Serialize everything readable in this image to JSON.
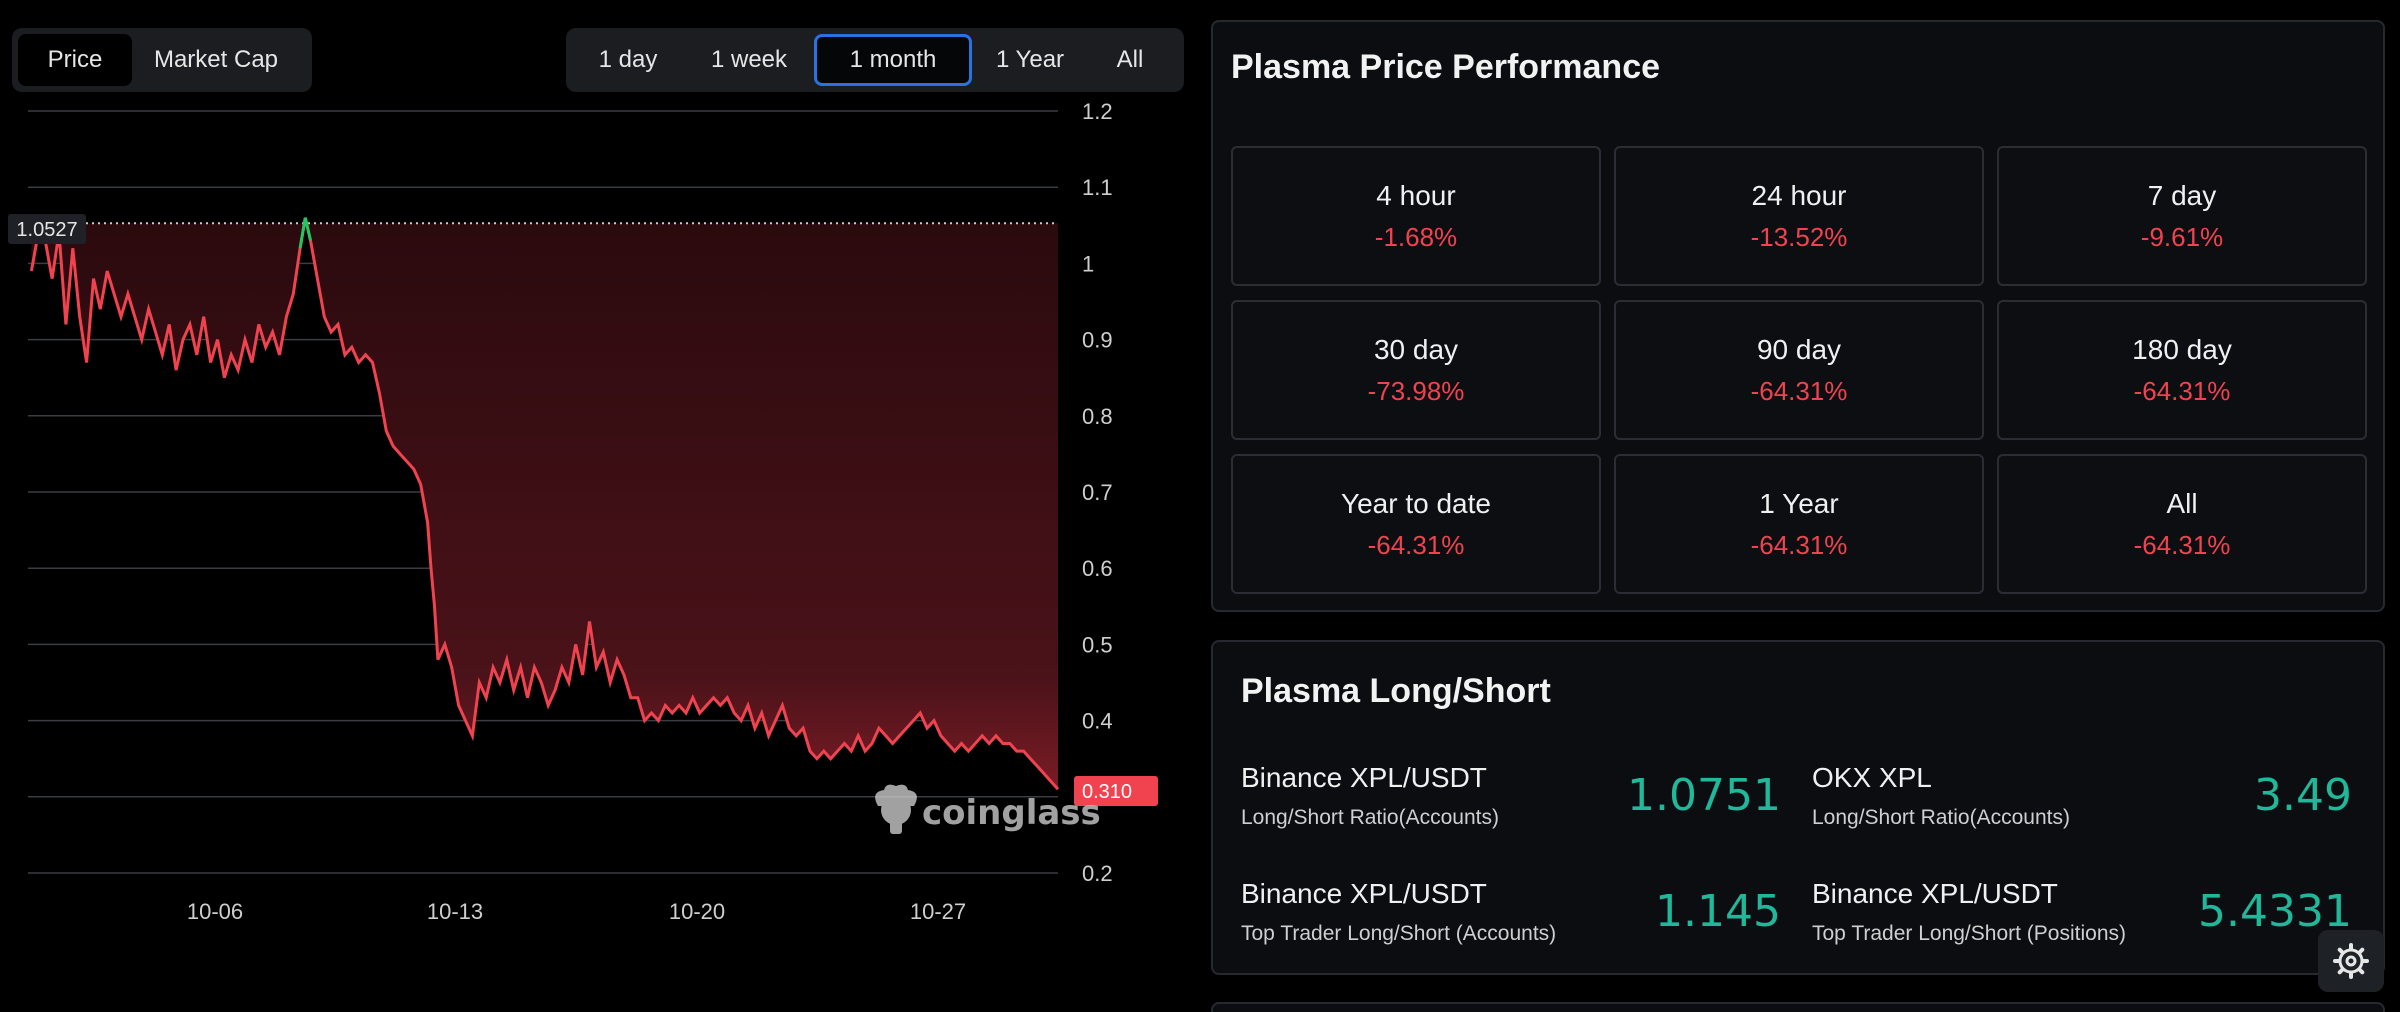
{
  "chart_tabs": [
    "Price",
    "Market Cap"
  ],
  "range_tabs": [
    "1 day",
    "1 week",
    "1 month",
    "1 Year",
    "All"
  ],
  "chart_data": {
    "type": "line",
    "title": "",
    "xlabel": "",
    "ylabel": "",
    "x_ticks": [
      "10-06",
      "10-13",
      "10-20",
      "10-27"
    ],
    "y_ticks": [
      "1.2",
      "1.1",
      "1",
      "0.9",
      "0.8",
      "0.7",
      "0.6",
      "0.5",
      "0.4",
      "0.3",
      "0.2"
    ],
    "ylim": [
      0.2,
      1.2
    ],
    "xlim": [
      0,
      29.9
    ],
    "high_label": "1.0527",
    "current_label": "0.310",
    "watermark": "coinglass",
    "colors": {
      "line": "#f0434f",
      "high_segment": "#22c55e",
      "fill_top": "#3a0d12",
      "label_bg": "#f0434f"
    },
    "series": [
      {
        "points": [
          [
            0.1,
            0.99
          ],
          [
            0.3,
            1.04
          ],
          [
            0.5,
            1.03
          ],
          [
            0.7,
            0.98
          ],
          [
            0.9,
            1.04
          ],
          [
            1.1,
            0.92
          ],
          [
            1.3,
            1.02
          ],
          [
            1.5,
            0.93
          ],
          [
            1.7,
            0.87
          ],
          [
            1.9,
            0.98
          ],
          [
            2.1,
            0.94
          ],
          [
            2.3,
            0.99
          ],
          [
            2.5,
            0.96
          ],
          [
            2.7,
            0.93
          ],
          [
            2.9,
            0.96
          ],
          [
            3.1,
            0.93
          ],
          [
            3.3,
            0.9
          ],
          [
            3.5,
            0.94
          ],
          [
            3.7,
            0.91
          ],
          [
            3.9,
            0.88
          ],
          [
            4.1,
            0.92
          ],
          [
            4.3,
            0.86
          ],
          [
            4.5,
            0.9
          ],
          [
            4.7,
            0.92
          ],
          [
            4.9,
            0.88
          ],
          [
            5.1,
            0.93
          ],
          [
            5.3,
            0.87
          ],
          [
            5.5,
            0.9
          ],
          [
            5.7,
            0.85
          ],
          [
            5.9,
            0.88
          ],
          [
            6.1,
            0.86
          ],
          [
            6.3,
            0.9
          ],
          [
            6.5,
            0.87
          ],
          [
            6.7,
            0.92
          ],
          [
            6.9,
            0.89
          ],
          [
            7.1,
            0.91
          ],
          [
            7.3,
            0.88
          ],
          [
            7.5,
            0.93
          ],
          [
            7.7,
            0.96
          ],
          [
            7.9,
            1.02
          ],
          [
            8.05,
            1.06
          ],
          [
            8.2,
            1.03
          ],
          [
            8.4,
            0.98
          ],
          [
            8.6,
            0.93
          ],
          [
            8.8,
            0.91
          ],
          [
            9.0,
            0.92
          ],
          [
            9.2,
            0.88
          ],
          [
            9.4,
            0.89
          ],
          [
            9.6,
            0.87
          ],
          [
            9.8,
            0.88
          ],
          [
            10.0,
            0.87
          ],
          [
            10.2,
            0.83
          ],
          [
            10.4,
            0.78
          ],
          [
            10.6,
            0.76
          ],
          [
            10.8,
            0.75
          ],
          [
            11.0,
            0.74
          ],
          [
            11.2,
            0.73
          ],
          [
            11.4,
            0.71
          ],
          [
            11.6,
            0.66
          ],
          [
            11.7,
            0.6
          ],
          [
            11.8,
            0.55
          ],
          [
            11.9,
            0.48
          ],
          [
            12.1,
            0.5
          ],
          [
            12.3,
            0.47
          ],
          [
            12.5,
            0.42
          ],
          [
            12.7,
            0.4
          ],
          [
            12.9,
            0.38
          ],
          [
            13.1,
            0.45
          ],
          [
            13.3,
            0.43
          ],
          [
            13.5,
            0.47
          ],
          [
            13.7,
            0.45
          ],
          [
            13.9,
            0.48
          ],
          [
            14.1,
            0.44
          ],
          [
            14.3,
            0.47
          ],
          [
            14.5,
            0.43
          ],
          [
            14.7,
            0.47
          ],
          [
            14.9,
            0.45
          ],
          [
            15.1,
            0.42
          ],
          [
            15.3,
            0.44
          ],
          [
            15.5,
            0.47
          ],
          [
            15.7,
            0.45
          ],
          [
            15.9,
            0.5
          ],
          [
            16.1,
            0.46
          ],
          [
            16.3,
            0.53
          ],
          [
            16.5,
            0.47
          ],
          [
            16.7,
            0.49
          ],
          [
            16.9,
            0.45
          ],
          [
            17.1,
            0.48
          ],
          [
            17.3,
            0.46
          ],
          [
            17.5,
            0.43
          ],
          [
            17.7,
            0.43
          ],
          [
            17.9,
            0.4
          ],
          [
            18.1,
            0.41
          ],
          [
            18.3,
            0.4
          ],
          [
            18.5,
            0.42
          ],
          [
            18.7,
            0.41
          ],
          [
            18.9,
            0.42
          ],
          [
            19.1,
            0.41
          ],
          [
            19.3,
            0.43
          ],
          [
            19.5,
            0.41
          ],
          [
            19.7,
            0.42
          ],
          [
            19.9,
            0.43
          ],
          [
            20.1,
            0.42
          ],
          [
            20.3,
            0.43
          ],
          [
            20.5,
            0.41
          ],
          [
            20.7,
            0.4
          ],
          [
            20.9,
            0.42
          ],
          [
            21.1,
            0.39
          ],
          [
            21.3,
            0.41
          ],
          [
            21.5,
            0.38
          ],
          [
            21.7,
            0.4
          ],
          [
            21.9,
            0.42
          ],
          [
            22.1,
            0.39
          ],
          [
            22.3,
            0.38
          ],
          [
            22.5,
            0.39
          ],
          [
            22.7,
            0.36
          ],
          [
            22.9,
            0.35
          ],
          [
            23.1,
            0.36
          ],
          [
            23.3,
            0.35
          ],
          [
            23.5,
            0.36
          ],
          [
            23.7,
            0.37
          ],
          [
            23.9,
            0.36
          ],
          [
            24.1,
            0.38
          ],
          [
            24.3,
            0.36
          ],
          [
            24.5,
            0.37
          ],
          [
            24.7,
            0.39
          ],
          [
            24.9,
            0.38
          ],
          [
            25.1,
            0.37
          ],
          [
            25.3,
            0.38
          ],
          [
            25.5,
            0.39
          ],
          [
            25.7,
            0.4
          ],
          [
            25.9,
            0.41
          ],
          [
            26.1,
            0.39
          ],
          [
            26.3,
            0.4
          ],
          [
            26.5,
            0.38
          ],
          [
            26.7,
            0.37
          ],
          [
            26.9,
            0.36
          ],
          [
            27.1,
            0.37
          ],
          [
            27.3,
            0.36
          ],
          [
            27.5,
            0.37
          ],
          [
            27.7,
            0.38
          ],
          [
            27.9,
            0.37
          ],
          [
            28.1,
            0.38
          ],
          [
            28.3,
            0.37
          ],
          [
            28.5,
            0.37
          ],
          [
            28.7,
            0.36
          ],
          [
            28.9,
            0.36
          ],
          [
            29.1,
            0.35
          ],
          [
            29.3,
            0.34
          ],
          [
            29.5,
            0.33
          ],
          [
            29.7,
            0.32
          ],
          [
            29.9,
            0.31
          ]
        ]
      }
    ]
  },
  "performance": {
    "title": "Plasma Price Performance",
    "cells": [
      {
        "label": "4 hour",
        "value": "-1.68%"
      },
      {
        "label": "24 hour",
        "value": "-13.52%"
      },
      {
        "label": "7 day",
        "value": "-9.61%"
      },
      {
        "label": "30 day",
        "value": "-73.98%"
      },
      {
        "label": "90 day",
        "value": "-64.31%"
      },
      {
        "label": "180 day",
        "value": "-64.31%"
      },
      {
        "label": "Year to date",
        "value": "-64.31%"
      },
      {
        "label": "1 Year",
        "value": "-64.31%"
      },
      {
        "label": "All",
        "value": "-64.31%"
      }
    ]
  },
  "long_short": {
    "title": "Plasma Long/Short",
    "items": [
      {
        "name": "Binance XPL/USDT",
        "sub": "Long/Short Ratio(Accounts)",
        "value": "1.0751"
      },
      {
        "name": "OKX XPL",
        "sub": "Long/Short Ratio(Accounts)",
        "value": "3.49"
      },
      {
        "name": "Binance XPL/USDT",
        "sub": "Top Trader Long/Short (Accounts)",
        "value": "1.145"
      },
      {
        "name": "Binance XPL/USDT",
        "sub": "Top Trader Long/Short (Positions)",
        "value": "5.4331"
      }
    ]
  },
  "icons": {
    "settings": "gear-icon",
    "watermark_logo": "coinglass-logo-icon"
  }
}
